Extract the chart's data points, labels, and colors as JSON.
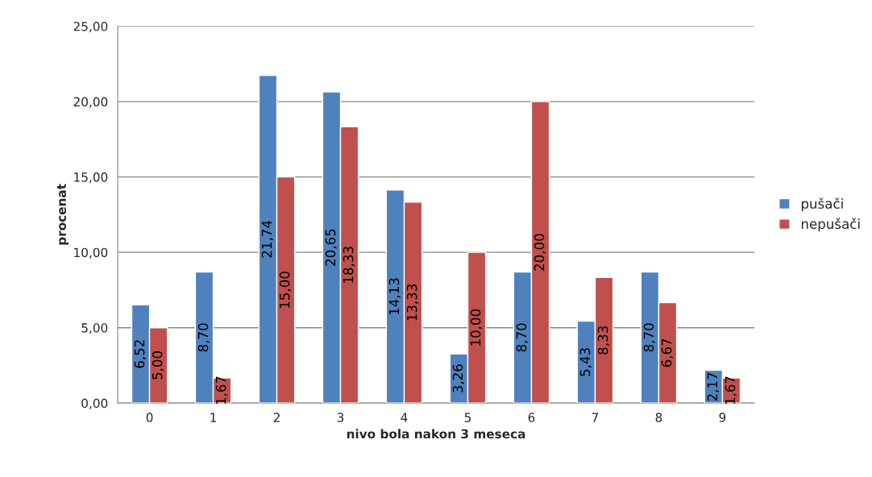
{
  "chart_data": {
    "type": "bar",
    "xlabel": "nivo bola nakon 3 meseca",
    "ylabel": "procenat",
    "categories": [
      "0",
      "1",
      "2",
      "3",
      "4",
      "5",
      "6",
      "7",
      "8",
      "9"
    ],
    "series": [
      {
        "name": "pušači",
        "color": "#4f81bd",
        "values": [
          6.52,
          8.7,
          21.74,
          20.65,
          14.13,
          3.26,
          8.7,
          5.43,
          8.7,
          2.17
        ],
        "value_labels": [
          "6,52",
          "8,70",
          "21,74",
          "20,65",
          "14,13",
          "3,26",
          "8,70",
          "5,43",
          "8,70",
          "2,17"
        ]
      },
      {
        "name": "nepušači",
        "color": "#c0504d",
        "values": [
          5.0,
          1.67,
          15.0,
          18.33,
          13.33,
          10.0,
          20.0,
          8.33,
          6.67,
          1.67
        ],
        "value_labels": [
          "5,00",
          "1,67",
          "15,00",
          "18,33",
          "13,33",
          "10,00",
          "20,00",
          "8,33",
          "6,67",
          "1,67"
        ]
      }
    ],
    "ylim": [
      0,
      25
    ],
    "yticks": [
      {
        "value": 0,
        "label": "0,00"
      },
      {
        "value": 5,
        "label": "5,00"
      },
      {
        "value": 10,
        "label": "10,00"
      },
      {
        "value": 15,
        "label": "15,00"
      },
      {
        "value": 20,
        "label": "20,00"
      },
      {
        "value": 25,
        "label": "25,00"
      }
    ],
    "grid": "y",
    "legend": "right"
  }
}
